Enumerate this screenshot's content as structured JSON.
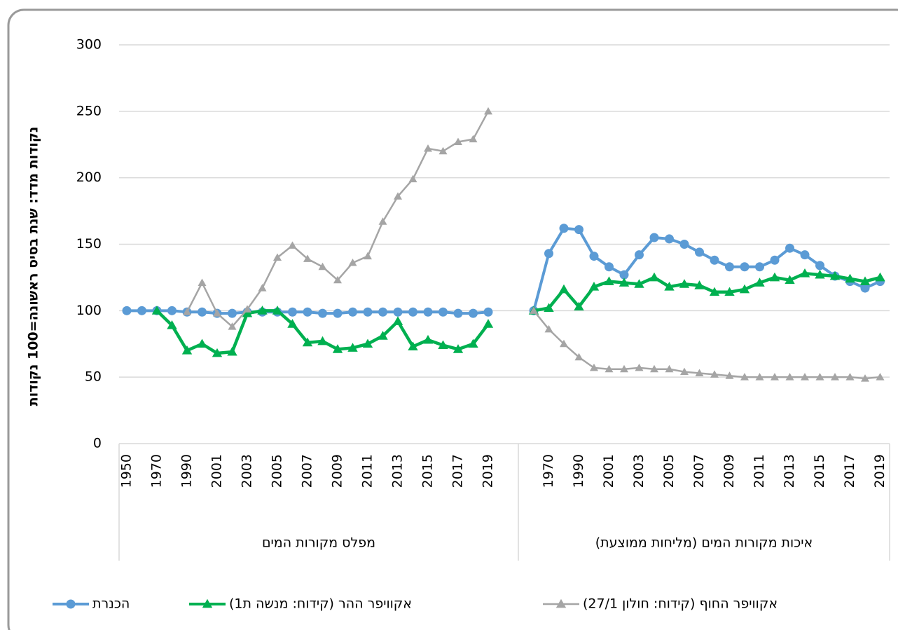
{
  "chart_data": {
    "type": "line",
    "y_label": "נקודות מדד: שנת בסיס ראשונה=100 נקודות",
    "ylim": [
      0,
      300
    ],
    "yticks": [
      0,
      50,
      100,
      150,
      200,
      250,
      300
    ],
    "grid": true,
    "groups": [
      {
        "label": "מפלס מקורות המים",
        "categories": [
          "1950",
          null,
          "1970",
          null,
          "1990",
          null,
          "2001",
          null,
          "2003",
          null,
          "2005",
          null,
          "2007",
          null,
          "2009",
          null,
          "2011",
          null,
          "2013",
          null,
          "2015",
          null,
          "2017",
          null,
          "2019"
        ]
      },
      {
        "label": "איכות מקורות המים (מליחות ממוצעת)",
        "categories": [
          null,
          "1970",
          null,
          "1990",
          null,
          "2001",
          null,
          "2003",
          null,
          "2005",
          null,
          "2007",
          null,
          "2009",
          null,
          "2011",
          null,
          "2013",
          null,
          "2015",
          null,
          "2017",
          null,
          "2019"
        ]
      }
    ],
    "legend": "bottom",
    "series": [
      {
        "name": "הכנרת",
        "color": "#5b9bd5",
        "marker": "circle",
        "values": [
          [
            100,
            100,
            100,
            100,
            99,
            99,
            98,
            98,
            99,
            99,
            99,
            99,
            99,
            98,
            98,
            99,
            99,
            99,
            99,
            99,
            99,
            99,
            98,
            98,
            99
          ],
          [
            100,
            143,
            162,
            161,
            141,
            133,
            127,
            142,
            155,
            154,
            150,
            144,
            138,
            133,
            133,
            133,
            138,
            147,
            142,
            134,
            126,
            122,
            117,
            122
          ]
        ]
      },
      {
        "name": "אקוויפר ההר (קידוח: מנשה ת1)",
        "color": "#00b050",
        "marker": "triangle",
        "values": [
          [
            null,
            null,
            100,
            89,
            70,
            75,
            68,
            69,
            98,
            100,
            100,
            90,
            76,
            77,
            71,
            72,
            75,
            81,
            92,
            73,
            78,
            74,
            71,
            75,
            90
          ],
          [
            100,
            102,
            116,
            103,
            118,
            122,
            121,
            120,
            125,
            118,
            120,
            119,
            114,
            114,
            116,
            121,
            125,
            123,
            128,
            127,
            126,
            124,
            122,
            125
          ]
        ]
      },
      {
        "name": "אקוויפר החוף (קידוח: חולון 27/1)",
        "color": "#a5a5a5",
        "marker": "triangle",
        "values": [
          [
            null,
            null,
            null,
            null,
            99,
            121,
            98,
            88,
            101,
            117,
            140,
            149,
            139,
            133,
            123,
            136,
            141,
            167,
            186,
            199,
            222,
            220,
            227,
            229,
            250
          ],
          [
            100,
            86,
            75,
            65,
            57,
            56,
            56,
            57,
            56,
            56,
            54,
            53,
            52,
            51,
            50,
            50,
            50,
            50,
            50,
            50,
            50,
            50,
            49,
            50
          ]
        ]
      }
    ]
  }
}
